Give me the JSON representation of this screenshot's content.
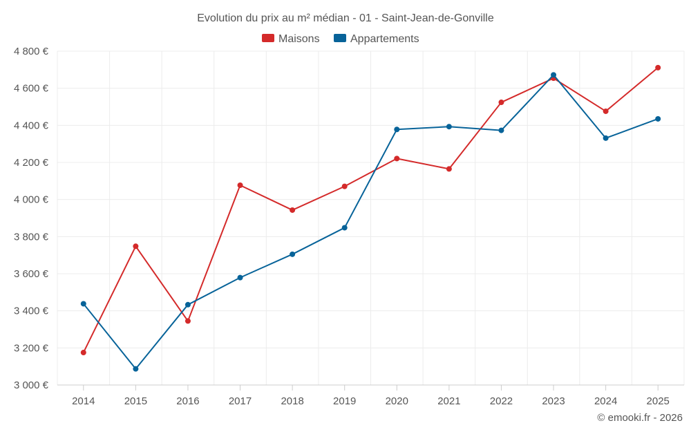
{
  "chart_data": {
    "type": "line",
    "title": "Evolution du prix au m² médian - 01 - Saint-Jean-de-Gonville",
    "xlabel": "",
    "ylabel": "",
    "categories": [
      "2014",
      "2015",
      "2016",
      "2017",
      "2018",
      "2019",
      "2020",
      "2021",
      "2022",
      "2023",
      "2024",
      "2025"
    ],
    "ylim": [
      3000,
      4800
    ],
    "yticks": [
      3000,
      3200,
      3400,
      3600,
      3800,
      4000,
      4200,
      4400,
      4600,
      4800
    ],
    "ytick_labels": [
      "3 000 €",
      "3 200 €",
      "3 400 €",
      "3 600 €",
      "3 800 €",
      "4 000 €",
      "4 200 €",
      "4 400 €",
      "4 600 €",
      "4 800 €"
    ],
    "grid": true,
    "legend_position": "top-center",
    "series": [
      {
        "name": "Maisons",
        "color": "#d42a2a",
        "values": [
          3175,
          3748,
          3345,
          4077,
          3943,
          4071,
          4221,
          4165,
          4524,
          4654,
          4476,
          4711
        ]
      },
      {
        "name": "Appartements",
        "color": "#076399",
        "values": [
          3438,
          3087,
          3433,
          3579,
          3705,
          3848,
          4378,
          4393,
          4373,
          4672,
          4331,
          4435
        ]
      }
    ],
    "credit": "© emooki.fr - 2026"
  }
}
